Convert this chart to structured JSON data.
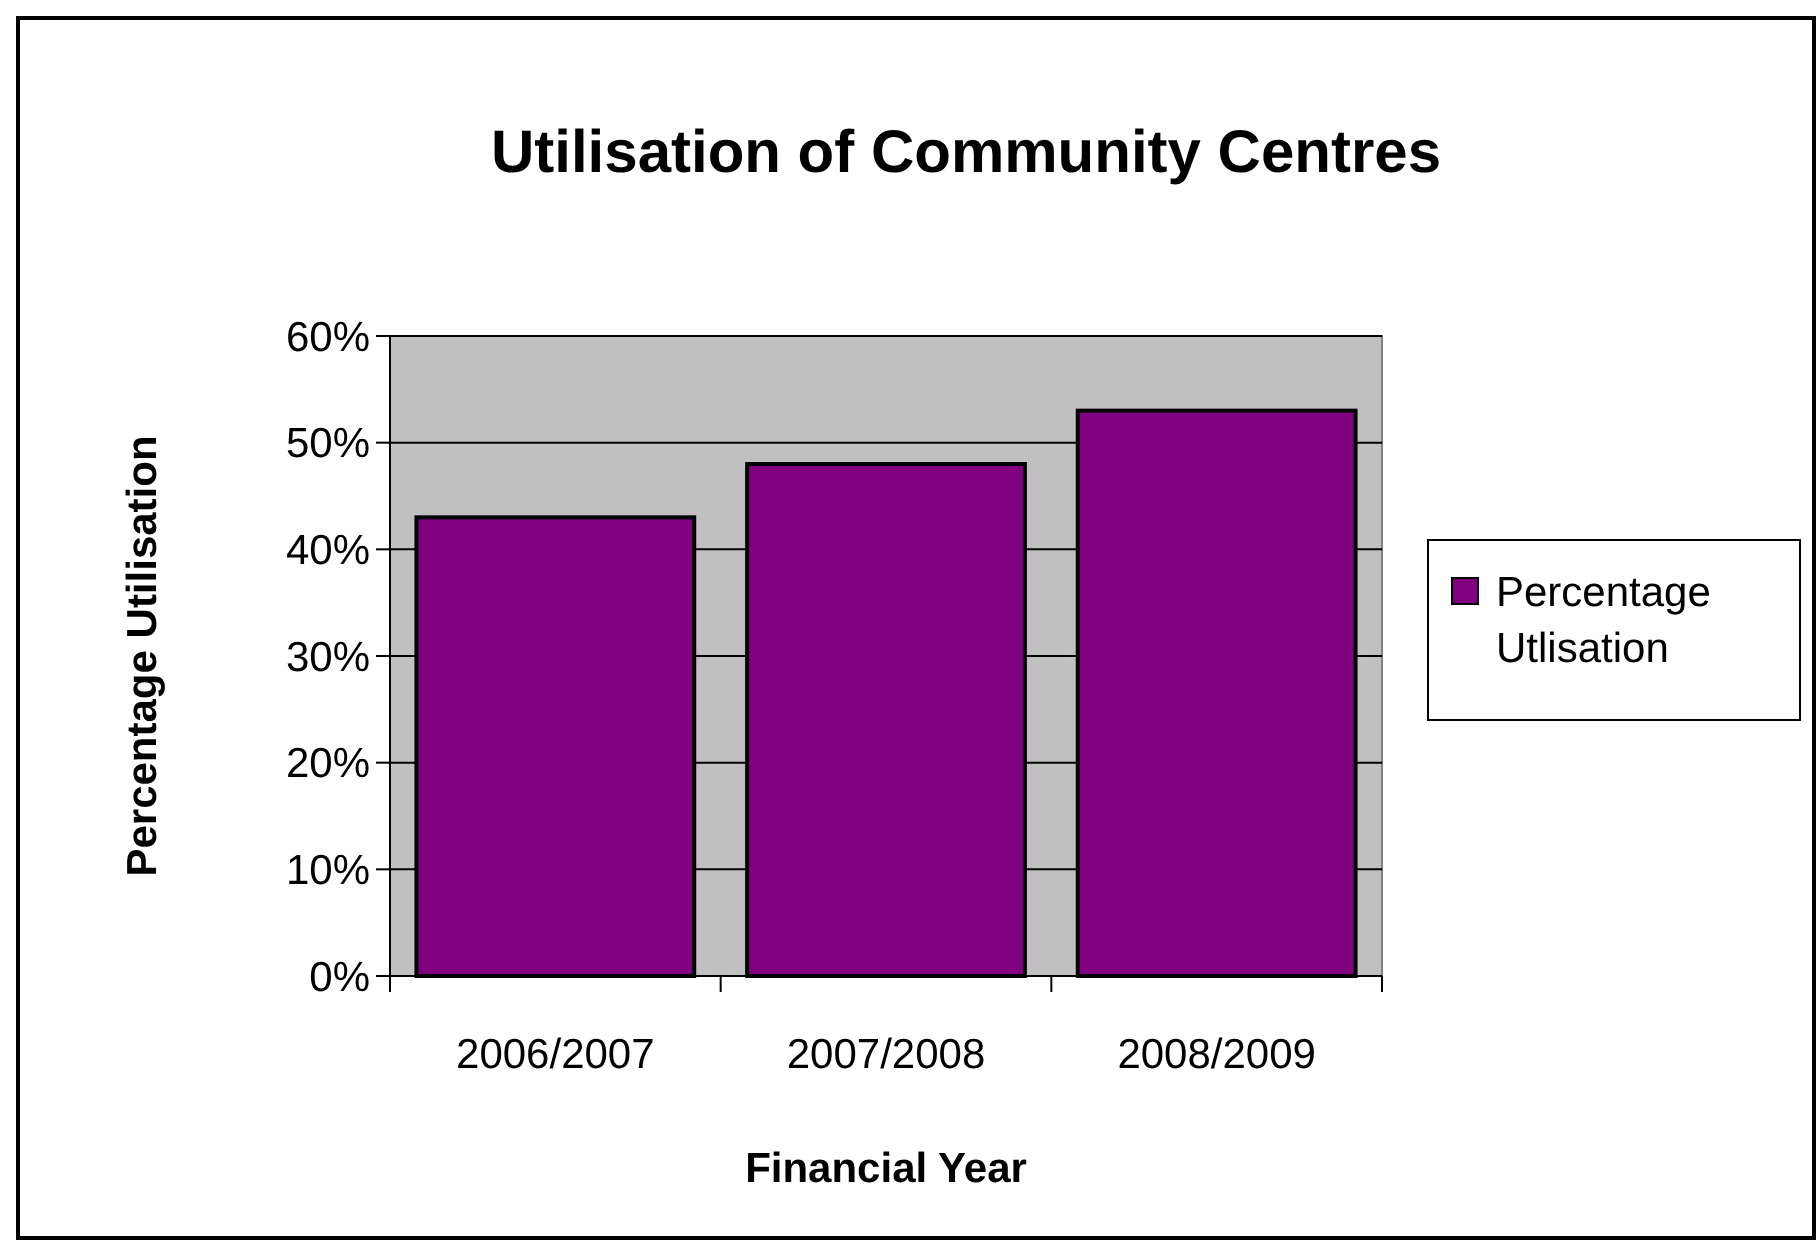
{
  "chart_data": {
    "type": "bar",
    "title": "Utilisation of Community Centres",
    "xlabel": "Financial Year",
    "ylabel": "Percentage Utilisation",
    "categories": [
      "2006/2007",
      "2007/2008",
      "2008/2009"
    ],
    "series": [
      {
        "name": "Percentage Utlisation",
        "color": "#800080",
        "values": [
          43,
          48,
          53
        ]
      }
    ],
    "ylim": [
      0,
      60
    ],
    "yticks": [
      {
        "value": 0,
        "label": "0%"
      },
      {
        "value": 10,
        "label": "10%"
      },
      {
        "value": 20,
        "label": "20%"
      },
      {
        "value": 30,
        "label": "30%"
      },
      {
        "value": 40,
        "label": "40%"
      },
      {
        "value": 50,
        "label": "50%"
      },
      {
        "value": 60,
        "label": "60%"
      }
    ],
    "grid": "y",
    "legend": "right"
  }
}
